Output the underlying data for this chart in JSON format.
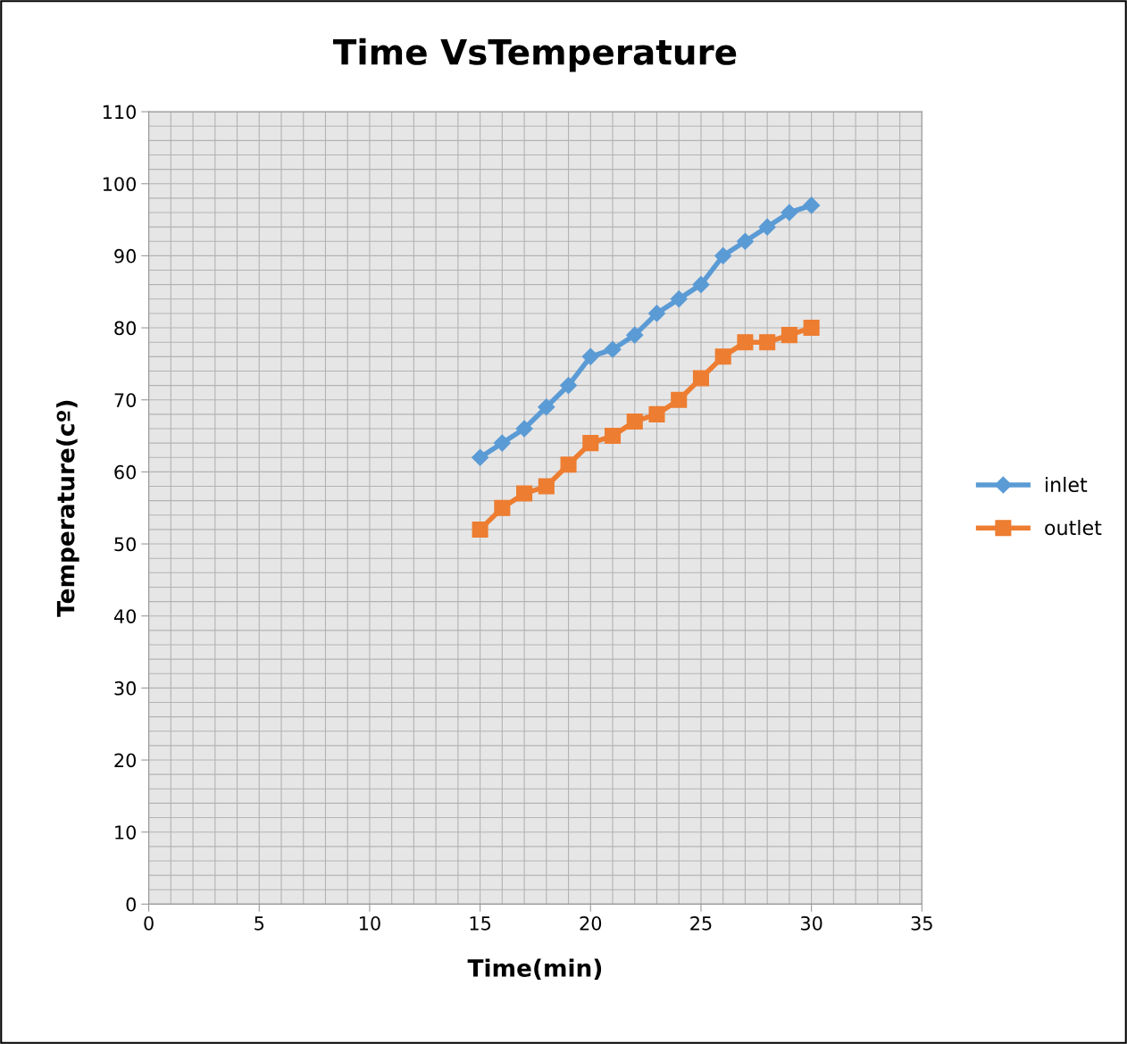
{
  "chart_data": {
    "type": "line",
    "title": "Time VsTemperature",
    "xlabel": "Time(min)",
    "ylabel": "Temperature(cº)",
    "x": [
      15,
      16,
      17,
      18,
      19,
      20,
      21,
      22,
      23,
      24,
      25,
      26,
      27,
      28,
      29,
      30
    ],
    "series": [
      {
        "name": "inlet",
        "color": "#5b9bd5",
        "marker": "diamond",
        "values": [
          62,
          64,
          66,
          69,
          72,
          76,
          77,
          79,
          82,
          84,
          86,
          90,
          92,
          94,
          96,
          97
        ]
      },
      {
        "name": "outlet",
        "color": "#ed7d31",
        "marker": "square",
        "values": [
          52,
          55,
          57,
          58,
          61,
          64,
          65,
          67,
          68,
          70,
          73,
          76,
          78,
          78,
          79,
          80
        ]
      }
    ],
    "xlim": [
      0,
      35
    ],
    "xticks": [
      0,
      5,
      10,
      15,
      20,
      25,
      30,
      35
    ],
    "ylim": [
      0,
      110
    ],
    "yticks": [
      0,
      10,
      20,
      30,
      40,
      50,
      60,
      70,
      80,
      90,
      100,
      110
    ],
    "grid": true,
    "legend": "right",
    "line_style": "solid"
  }
}
